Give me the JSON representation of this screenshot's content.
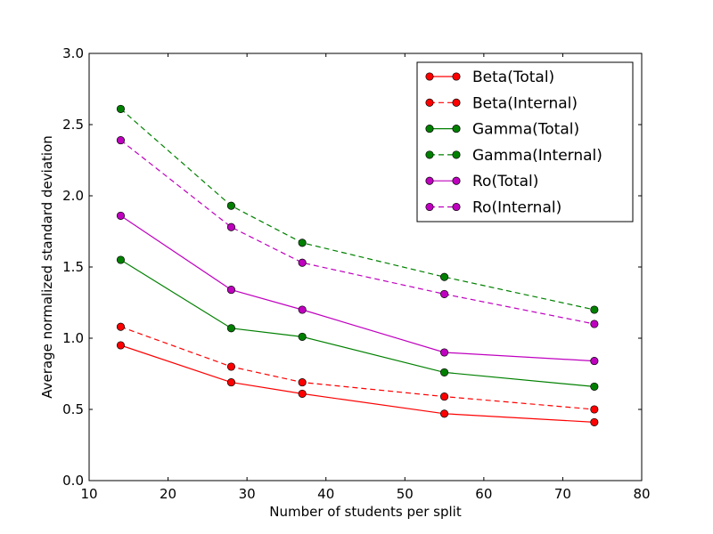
{
  "chart_data": {
    "type": "line",
    "title": "",
    "xlabel": "Number of students per split",
    "ylabel": "Average normalized standard deviation",
    "xlim": [
      10,
      80
    ],
    "ylim": [
      0.0,
      3.0
    ],
    "xticks": [
      10,
      20,
      30,
      40,
      50,
      60,
      70,
      80
    ],
    "xtick_labels": [
      "10",
      "20",
      "30",
      "40",
      "50",
      "60",
      "70",
      "80"
    ],
    "yticks": [
      0.0,
      0.5,
      1.0,
      1.5,
      2.0,
      2.5,
      3.0
    ],
    "ytick_labels": [
      "0.0",
      "0.5",
      "1.0",
      "1.5",
      "2.0",
      "2.5",
      "3.0"
    ],
    "grid": false,
    "legend_position": "top-right",
    "x": [
      14,
      28,
      37,
      55,
      74
    ],
    "series": [
      {
        "name": "Beta(Total)",
        "color": "#ff0000",
        "linestyle": "solid",
        "values": [
          0.95,
          0.69,
          0.61,
          0.47,
          0.41
        ]
      },
      {
        "name": "Beta(Internal)",
        "color": "#ff0000",
        "linestyle": "dashed",
        "values": [
          1.08,
          0.8,
          0.69,
          0.59,
          0.5
        ]
      },
      {
        "name": "Gamma(Total)",
        "color": "#008000",
        "linestyle": "solid",
        "values": [
          1.55,
          1.07,
          1.01,
          0.76,
          0.66
        ]
      },
      {
        "name": "Gamma(Internal)",
        "color": "#008000",
        "linestyle": "dashed",
        "values": [
          2.61,
          1.93,
          1.67,
          1.43,
          1.2
        ]
      },
      {
        "name": "Ro(Total)",
        "color": "#bf00bf",
        "linestyle": "solid",
        "values": [
          1.86,
          1.34,
          1.2,
          0.9,
          0.84
        ]
      },
      {
        "name": "Ro(Internal)",
        "color": "#bf00bf",
        "linestyle": "dashed",
        "values": [
          2.39,
          1.78,
          1.53,
          1.31,
          1.1
        ]
      }
    ]
  }
}
